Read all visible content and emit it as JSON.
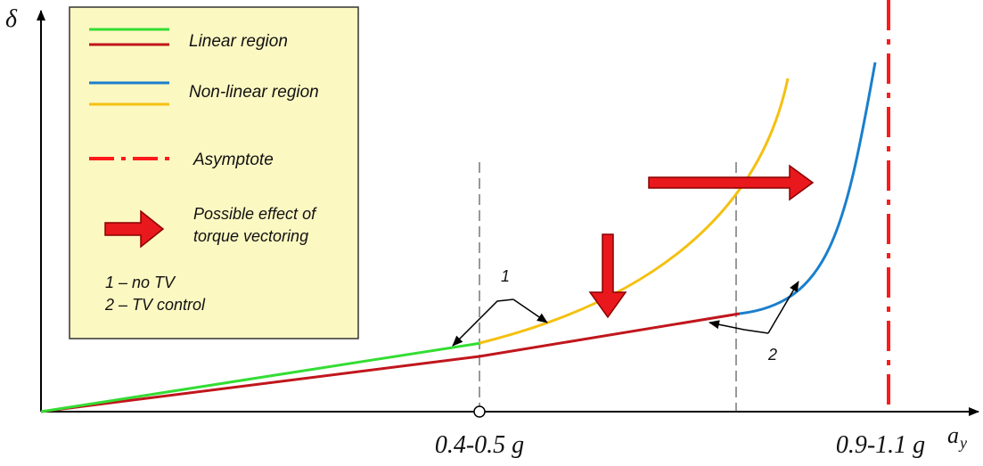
{
  "axes": {
    "y_symbol": "δ",
    "x_symbol_main": "a",
    "x_symbol_sub": "y",
    "tick_mid": "0.4-0.5 g",
    "tick_far": "0.9-1.1 g"
  },
  "legend": {
    "linear": "Linear region",
    "nonlinear": "Non-linear region",
    "asymptote": "Asymptote",
    "effect_line1": "Possible effect of",
    "effect_line2": "torque vectoring",
    "note1": "1 – no TV",
    "note2": "2 – TV control"
  },
  "annotations": {
    "label_1": "1",
    "label_2": "2"
  },
  "colors": {
    "green": "#33dd33",
    "red": "#c0161c",
    "blue": "#1a7fcc",
    "yellow": "#f5c010",
    "asymptote": "#ff1a1a",
    "arrow_fill": "#e8181c",
    "arrow_outline": "#8a0000",
    "legend_bg": "#fcf8c2"
  }
}
